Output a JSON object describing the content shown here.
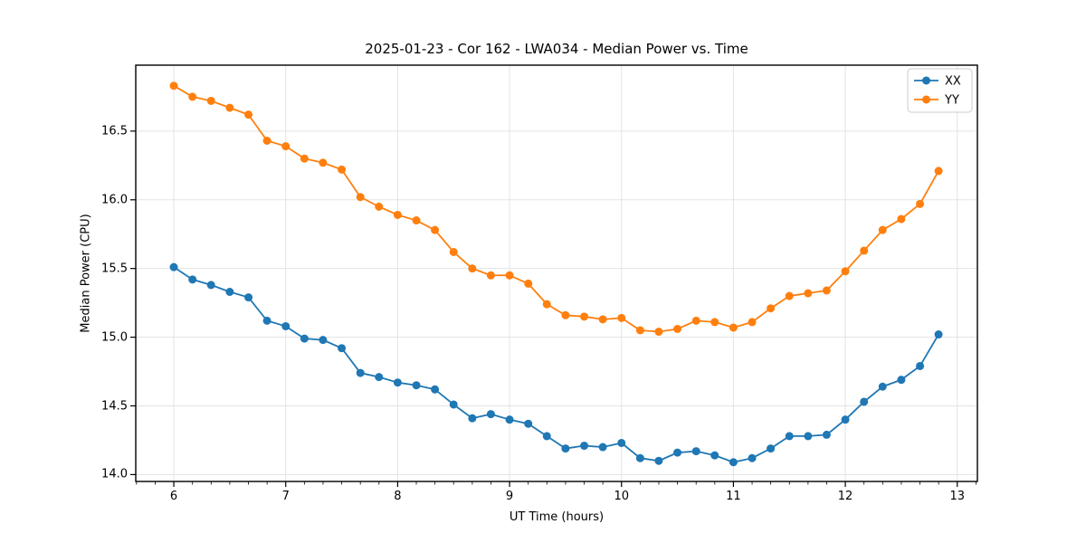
{
  "chart_data": {
    "type": "line",
    "title": "2025-01-23 - Cor 162 - LWA034 - Median Power vs. Time",
    "xlabel": "UT Time (hours)",
    "ylabel": "Median Power (CPU)",
    "xlim": [
      5.66,
      13.18
    ],
    "ylim": [
      13.95,
      16.98
    ],
    "grid": true,
    "legend_position": "upper right",
    "x_ticks": [
      6,
      7,
      8,
      9,
      10,
      11,
      12,
      13
    ],
    "x_tick_labels": [
      "6",
      "7",
      "8",
      "9",
      "10",
      "11",
      "12",
      "13"
    ],
    "x_minor_tick_step": 0.16667,
    "y_ticks": [
      14.0,
      14.5,
      15.0,
      15.5,
      16.0,
      16.5
    ],
    "y_tick_labels": [
      "14.0",
      "14.5",
      "15.0",
      "15.5",
      "16.0",
      "16.5"
    ],
    "x": [
      6.0,
      6.167,
      6.333,
      6.5,
      6.667,
      6.833,
      7.0,
      7.167,
      7.333,
      7.5,
      7.667,
      7.833,
      8.0,
      8.167,
      8.333,
      8.5,
      8.667,
      8.833,
      9.0,
      9.167,
      9.333,
      9.5,
      9.667,
      9.833,
      10.0,
      10.167,
      10.333,
      10.5,
      10.667,
      10.833,
      11.0,
      11.167,
      11.333,
      11.5,
      11.667,
      11.833,
      12.0,
      12.167,
      12.333,
      12.5,
      12.667,
      12.833
    ],
    "series": [
      {
        "name": "XX",
        "color": "#1f77b4",
        "values": [
          15.51,
          15.42,
          15.38,
          15.33,
          15.29,
          15.12,
          15.08,
          14.99,
          14.98,
          14.92,
          14.74,
          14.71,
          14.67,
          14.65,
          14.62,
          14.51,
          14.41,
          14.44,
          14.4,
          14.37,
          14.28,
          14.19,
          14.21,
          14.2,
          14.23,
          14.12,
          14.1,
          14.16,
          14.17,
          14.14,
          14.09,
          14.12,
          14.19,
          14.28,
          14.28,
          14.29,
          14.4,
          14.53,
          14.64,
          14.69,
          14.79,
          15.02
        ]
      },
      {
        "name": "YY",
        "color": "#ff7f0e",
        "values": [
          16.83,
          16.75,
          16.72,
          16.67,
          16.62,
          16.43,
          16.39,
          16.3,
          16.27,
          16.22,
          16.02,
          15.95,
          15.89,
          15.85,
          15.78,
          15.62,
          15.5,
          15.45,
          15.45,
          15.39,
          15.24,
          15.16,
          15.15,
          15.13,
          15.14,
          15.05,
          15.04,
          15.06,
          15.12,
          15.11,
          15.07,
          15.11,
          15.21,
          15.3,
          15.32,
          15.34,
          15.48,
          15.63,
          15.78,
          15.86,
          15.97,
          16.21
        ]
      }
    ],
    "style": {
      "grid_color": "#e3e3e3",
      "spine_color": "#000000",
      "background": "#ffffff"
    }
  }
}
